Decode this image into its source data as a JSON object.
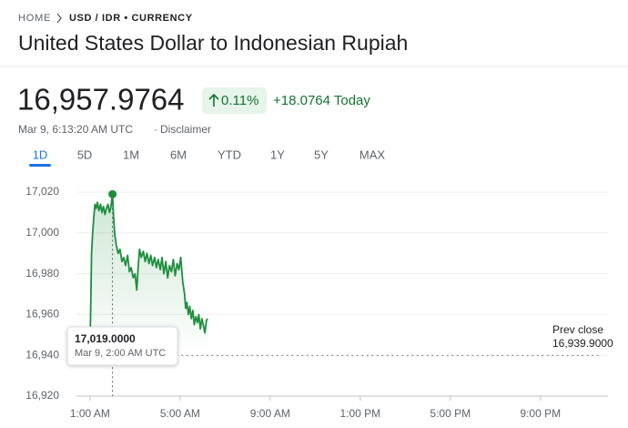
{
  "breadcrumb": {
    "home": "HOME",
    "current": "USD / IDR • CURRENCY"
  },
  "title": "United States Dollar to Indonesian Rupiah",
  "price": "16,957.9764",
  "change_percent": "0.11%",
  "change_today": "+18.0764 Today",
  "timestamp": "Mar 9, 6:13:20 AM UTC",
  "disclaimer": "Disclaimer",
  "tabs": [
    "1D",
    "5D",
    "1M",
    "6M",
    "YTD",
    "1Y",
    "5Y",
    "MAX"
  ],
  "active_tab": 0,
  "chart_data": {
    "type": "line",
    "color": "#1e8e3e",
    "grid": true,
    "x": [
      1.0,
      1.03,
      1.07,
      1.12,
      1.17,
      1.22,
      1.28,
      1.33,
      1.4,
      1.47,
      1.53,
      1.6,
      1.67,
      1.73,
      1.8,
      1.87,
      1.93,
      2.0,
      2.05,
      2.1,
      2.17,
      2.25,
      2.33,
      2.42,
      2.5,
      2.58,
      2.67,
      2.75,
      2.83,
      2.92,
      3.0,
      3.08,
      3.13,
      3.2,
      3.28,
      3.37,
      3.45,
      3.53,
      3.62,
      3.7,
      3.78,
      3.87,
      3.95,
      4.03,
      4.12,
      4.2,
      4.28,
      4.37,
      4.45,
      4.53,
      4.62,
      4.7,
      4.78,
      4.87,
      4.95,
      5.03,
      5.12,
      5.2,
      5.25,
      5.3,
      5.37,
      5.43,
      5.5,
      5.57,
      5.63,
      5.7,
      5.77,
      5.83,
      5.9,
      5.97,
      6.03,
      6.1,
      6.17,
      6.22
    ],
    "values": [
      16941,
      16962,
      16990,
      17000,
      17008,
      17014,
      17012,
      17015,
      17011,
      17014,
      17010,
      17013,
      17009,
      17012,
      17014,
      17010,
      17013,
      17019,
      17008,
      16999,
      16994,
      16990,
      16992,
      16986,
      16988,
      16984,
      16989,
      16981,
      16983,
      16978,
      16980,
      16972,
      16982,
      16992,
      16988,
      16991,
      16986,
      16990,
      16985,
      16989,
      16984,
      16988,
      16983,
      16987,
      16982,
      16988,
      16980,
      16986,
      16978,
      16984,
      16981,
      16987,
      16979,
      16985,
      16982,
      16988,
      16976,
      16970,
      16963,
      16966,
      16960,
      16964,
      16958,
      16962,
      16955,
      16959,
      16956,
      16960,
      16953,
      16958,
      16955,
      16951,
      16957,
      16957.9764
    ],
    "xlim": [
      0.4,
      24
    ],
    "xticks": [
      {
        "value": 1,
        "label": "1:00 AM"
      },
      {
        "value": 5,
        "label": "5:00 AM"
      },
      {
        "value": 9,
        "label": "9:00 AM"
      },
      {
        "value": 13,
        "label": "1:00 PM"
      },
      {
        "value": 17,
        "label": "5:00 PM"
      },
      {
        "value": 21,
        "label": "9:00 PM"
      }
    ],
    "ylim": [
      16920,
      17020
    ],
    "yticks": [
      {
        "value": 16920,
        "label": "16,920"
      },
      {
        "value": 16940,
        "label": "16,940"
      },
      {
        "value": 16960,
        "label": "16,960"
      },
      {
        "value": 16980,
        "label": "16,980"
      },
      {
        "value": 17000,
        "label": "17,000"
      },
      {
        "value": 17020,
        "label": "17,020"
      }
    ],
    "prev_close": {
      "label": "Prev close",
      "value": 16939.9,
      "value_label": "16,939.9000"
    },
    "tooltip": {
      "x": 2,
      "value": 17019,
      "value_label": "17,019.0000",
      "time": "Mar 9, 2:00 AM UTC"
    }
  }
}
